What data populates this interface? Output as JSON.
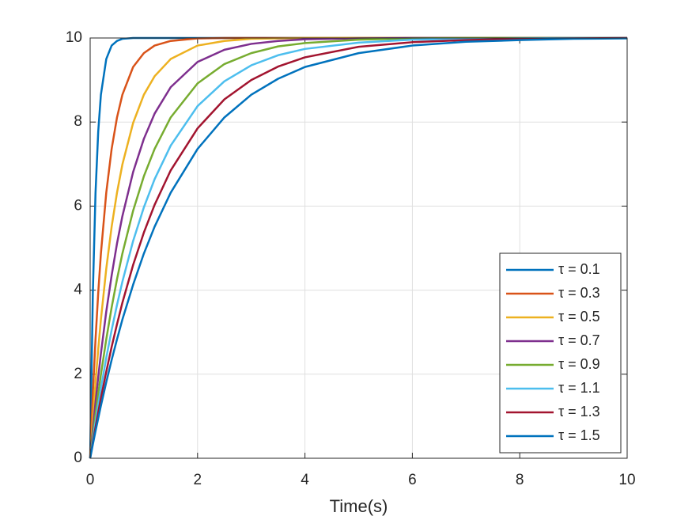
{
  "chart_data": {
    "type": "line",
    "xlabel": "Time(s)",
    "x": [
      0,
      0.05,
      0.1,
      0.15,
      0.2,
      0.3,
      0.4,
      0.5,
      0.6,
      0.8,
      1,
      1.2,
      1.5,
      2,
      2.5,
      3,
      3.5,
      4,
      5,
      6,
      7,
      8,
      9,
      10
    ],
    "series": [
      {
        "name": "τ = 0.1",
        "color": "#0072BD",
        "values": [
          0,
          3.93,
          6.32,
          7.77,
          8.65,
          9.5,
          9.82,
          9.93,
          9.98,
          10,
          10,
          10,
          10,
          10,
          10,
          10,
          10,
          10,
          10,
          10,
          10,
          10,
          10,
          10
        ]
      },
      {
        "name": "τ = 0.3",
        "color": "#D95319",
        "values": [
          0,
          1.54,
          2.83,
          3.93,
          4.87,
          6.32,
          7.36,
          8.11,
          8.65,
          9.31,
          9.64,
          9.82,
          9.93,
          9.99,
          10,
          10,
          10,
          10,
          10,
          10,
          10,
          10,
          10,
          10
        ]
      },
      {
        "name": "τ = 0.5",
        "color": "#EDB120",
        "values": [
          0,
          0.95,
          1.81,
          2.59,
          3.3,
          4.51,
          5.51,
          6.32,
          6.99,
          7.98,
          8.65,
          9.09,
          9.5,
          9.82,
          9.93,
          9.98,
          9.99,
          10,
          10,
          10,
          10,
          10,
          10,
          10
        ]
      },
      {
        "name": "τ = 0.7",
        "color": "#7E2F8E",
        "values": [
          0,
          0.69,
          1.33,
          1.93,
          2.49,
          3.49,
          4.35,
          5.11,
          5.76,
          6.81,
          7.6,
          8.2,
          8.83,
          9.43,
          9.72,
          9.86,
          9.93,
          9.97,
          9.99,
          10,
          10,
          10,
          10,
          10
        ]
      },
      {
        "name": "τ = 0.9",
        "color": "#77AC30",
        "values": [
          0,
          0.54,
          1.05,
          1.54,
          1.99,
          2.83,
          3.59,
          4.26,
          4.87,
          5.89,
          6.71,
          7.36,
          8.11,
          8.92,
          9.38,
          9.64,
          9.8,
          9.88,
          9.96,
          9.99,
          10,
          10,
          10,
          10
        ]
      },
      {
        "name": "τ = 1.1",
        "color": "#4DBEEE",
        "values": [
          0,
          0.44,
          0.87,
          1.28,
          1.66,
          2.39,
          3.05,
          3.65,
          4.2,
          5.17,
          5.97,
          6.64,
          7.44,
          8.38,
          8.97,
          9.35,
          9.59,
          9.74,
          9.89,
          9.96,
          9.98,
          9.99,
          10,
          10
        ]
      },
      {
        "name": "τ = 1.3",
        "color": "#A2142F",
        "values": [
          0,
          0.38,
          0.74,
          1.09,
          1.43,
          2.06,
          2.65,
          3.19,
          3.7,
          4.6,
          5.37,
          6.03,
          6.85,
          7.85,
          8.54,
          9,
          9.32,
          9.54,
          9.79,
          9.9,
          9.95,
          9.98,
          9.99,
          10
        ]
      },
      {
        "name": "τ = 1.5",
        "color": "#0072BD",
        "values": [
          0,
          0.33,
          0.65,
          0.95,
          1.25,
          1.81,
          2.34,
          2.83,
          3.3,
          4.13,
          4.87,
          5.51,
          6.32,
          7.36,
          8.11,
          8.65,
          9.03,
          9.31,
          9.64,
          9.82,
          9.91,
          9.95,
          9.98,
          9.99
        ]
      }
    ],
    "xlim": [
      0,
      10
    ],
    "ylim": [
      0,
      10
    ],
    "xticks": [
      0,
      2,
      4,
      6,
      8,
      10
    ],
    "yticks": [
      0,
      2,
      4,
      6,
      8,
      10
    ],
    "grid": true,
    "legend_position": "lower right"
  }
}
